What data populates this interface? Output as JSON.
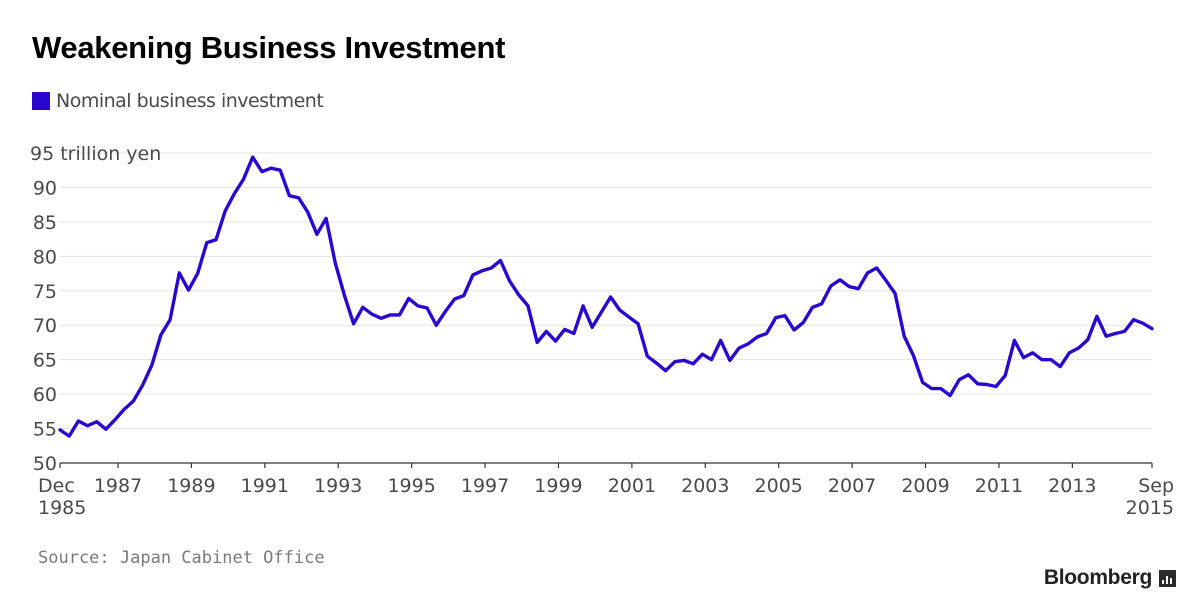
{
  "title": "Weakening Business Investment",
  "legend": {
    "label": "Nominal business investment",
    "color": "#2b05d0"
  },
  "source": "Source: Japan Cabinet Office",
  "brand": {
    "name": "Bloomberg",
    "icon": "bloomberg-terminal-icon"
  },
  "chart_data": {
    "type": "line",
    "title": "Weakening Business Investment",
    "ylabel": "trillion yen",
    "xlabel": "",
    "ylim": [
      50,
      95
    ],
    "yticks": [
      50,
      55,
      60,
      65,
      70,
      75,
      80,
      85,
      90,
      95
    ],
    "ytick_labels": [
      "50",
      "55",
      "60",
      "65",
      "70",
      "75",
      "80",
      "85",
      "90",
      "95 trillion yen"
    ],
    "xlim": [
      1985.92,
      2015.67
    ],
    "xticks": [
      {
        "x": 1985.92,
        "label": [
          "Dec",
          "1985"
        ]
      },
      {
        "x": 1987.5,
        "label": [
          "1987"
        ]
      },
      {
        "x": 1989.5,
        "label": [
          "1989"
        ]
      },
      {
        "x": 1991.5,
        "label": [
          "1991"
        ]
      },
      {
        "x": 1993.5,
        "label": [
          "1993"
        ]
      },
      {
        "x": 1995.5,
        "label": [
          "1995"
        ]
      },
      {
        "x": 1997.5,
        "label": [
          "1997"
        ]
      },
      {
        "x": 1999.5,
        "label": [
          "1999"
        ]
      },
      {
        "x": 2001.5,
        "label": [
          "2001"
        ]
      },
      {
        "x": 2003.5,
        "label": [
          "2003"
        ]
      },
      {
        "x": 2005.5,
        "label": [
          "2005"
        ]
      },
      {
        "x": 2007.5,
        "label": [
          "2007"
        ]
      },
      {
        "x": 2009.5,
        "label": [
          "2009"
        ]
      },
      {
        "x": 2011.5,
        "label": [
          "2011"
        ]
      },
      {
        "x": 2013.5,
        "label": [
          "2013"
        ]
      },
      {
        "x": 2015.67,
        "label": [
          "Sep",
          "2015"
        ]
      }
    ],
    "grid": true,
    "series": [
      {
        "name": "Nominal business investment",
        "color": "#2b05d0",
        "x_start": 1985.92,
        "x_step": 0.25,
        "values": [
          54.8,
          53.9,
          56.1,
          55.4,
          56.0,
          54.9,
          56.3,
          57.8,
          59.0,
          61.3,
          64.2,
          68.6,
          70.8,
          77.6,
          75.1,
          77.5,
          82.0,
          82.4,
          86.6,
          89.1,
          91.2,
          94.4,
          92.3,
          92.8,
          92.5,
          88.8,
          88.5,
          86.4,
          83.2,
          85.5,
          79.0,
          74.3,
          70.2,
          72.6,
          71.6,
          71.0,
          71.5,
          71.5,
          73.9,
          72.8,
          72.5,
          70.0,
          72.0,
          73.8,
          74.3,
          77.3,
          77.9,
          78.3,
          79.4,
          76.4,
          74.4,
          72.8,
          67.5,
          69.1,
          67.7,
          69.4,
          68.8,
          72.8,
          69.7,
          71.9,
          74.1,
          72.2,
          71.2,
          70.2,
          65.5,
          64.5,
          63.4,
          64.7,
          64.9,
          64.4,
          65.8,
          65.0,
          67.8,
          64.9,
          66.7,
          67.3,
          68.3,
          68.8,
          71.1,
          71.4,
          69.3,
          70.4,
          72.6,
          73.1,
          75.7,
          76.6,
          75.6,
          75.3,
          77.6,
          78.3,
          76.5,
          74.6,
          68.4,
          65.6,
          61.7,
          60.8,
          60.8,
          59.8,
          62.1,
          62.8,
          61.5,
          61.4,
          61.1,
          62.7,
          67.8,
          65.3,
          66.0,
          65.0,
          65.0,
          64.0,
          66.0,
          66.7,
          67.9,
          71.3,
          68.4,
          68.8,
          69.1,
          70.8,
          70.3,
          69.5
        ]
      }
    ]
  }
}
